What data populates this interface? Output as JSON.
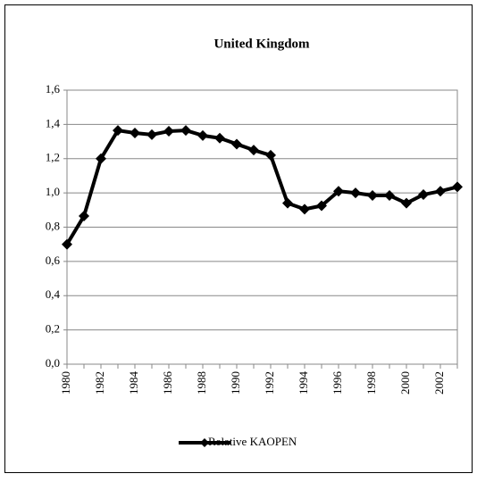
{
  "chart_data": {
    "type": "line",
    "title": "United Kingdom",
    "x": [
      1980,
      1981,
      1982,
      1983,
      1984,
      1985,
      1986,
      1987,
      1988,
      1989,
      1990,
      1991,
      1992,
      1993,
      1994,
      1995,
      1996,
      1997,
      1998,
      1999,
      2000,
      2001,
      2002,
      2003
    ],
    "series": [
      {
        "name": "Relative KAOPEN",
        "color": "#000000",
        "values": [
          0.7,
          0.865,
          1.2,
          1.365,
          1.35,
          1.34,
          1.36,
          1.365,
          1.335,
          1.32,
          1.285,
          1.25,
          1.22,
          0.94,
          0.905,
          0.925,
          1.01,
          1.0,
          0.985,
          0.985,
          0.94,
          0.99,
          1.01,
          1.035
        ]
      }
    ],
    "xlim": [
      1980,
      2003
    ],
    "xticks": [
      1980,
      1982,
      1984,
      1986,
      1988,
      1990,
      1992,
      1994,
      1996,
      1998,
      2000,
      2002
    ],
    "ylim": [
      0,
      1.6
    ],
    "yticks": [
      {
        "value": 0,
        "label": "0,0"
      },
      {
        "value": 0.2,
        "label": "0,2"
      },
      {
        "value": 0.4,
        "label": "0,4"
      },
      {
        "value": 0.6,
        "label": "0,6"
      },
      {
        "value": 0.8,
        "label": "0,8"
      },
      {
        "value": 1.0,
        "label": "1,0"
      },
      {
        "value": 1.2,
        "label": "1,2"
      },
      {
        "value": 1.4,
        "label": "1,4"
      },
      {
        "value": 1.6,
        "label": "1,6"
      }
    ],
    "grid": true,
    "legend": "bottom"
  }
}
